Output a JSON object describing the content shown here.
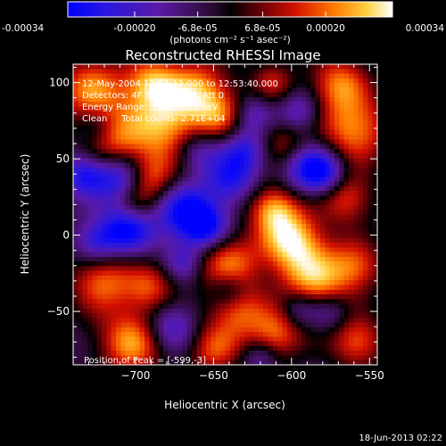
{
  "colorbar": {
    "ticks": [
      {
        "value": -0.00034,
        "label": "-0.00034"
      },
      {
        "value": -0.0002,
        "label": "-0.00020"
      },
      {
        "value": -6.8e-05,
        "label": "-6.8e-05"
      },
      {
        "value": 6.8e-05,
        "label": "6.8e-05"
      },
      {
        "value": 0.0002,
        "label": "0.00020"
      },
      {
        "value": 0.00034,
        "label": "0.00034"
      }
    ],
    "range": [
      -0.00034,
      0.00034
    ],
    "unit_label": "(photons cm⁻² s⁻¹ asec⁻²)",
    "stops": [
      {
        "pos": 0.0,
        "color": "#0000ff"
      },
      {
        "pos": 0.12,
        "color": "#2a18e0"
      },
      {
        "pos": 0.28,
        "color": "#5a1aa6"
      },
      {
        "pos": 0.45,
        "color": "#2a0a30"
      },
      {
        "pos": 0.5,
        "color": "#000000"
      },
      {
        "pos": 0.58,
        "color": "#5a0008"
      },
      {
        "pos": 0.7,
        "color": "#d31000"
      },
      {
        "pos": 0.82,
        "color": "#ff7a00"
      },
      {
        "pos": 0.92,
        "color": "#ffd040"
      },
      {
        "pos": 1.0,
        "color": "#ffffff"
      }
    ]
  },
  "chart_data": {
    "type": "heatmap",
    "title": "Reconstructed RHESSI Image",
    "xlabel": "Heliocentric X (arcsec)",
    "ylabel": "Heliocentric Y (arcsec)",
    "xlim": [
      -740,
      -545
    ],
    "ylim": [
      -85,
      112
    ],
    "xticks": [
      -700,
      -650,
      -600,
      -550
    ],
    "yticks": [
      -50,
      0,
      50,
      100
    ],
    "xtick_labels": [
      "−700",
      "−650",
      "−600",
      "−550"
    ],
    "ytick_labels": [
      "−50",
      "0",
      "50",
      "100"
    ],
    "annotations": [
      "12-May-2004 12:51:12.000 to 12:53:40.000",
      "Detectors: 4F 5F 6F 7F 8F, Att 0",
      "Energy Range: 25.0 - 50.0 keV",
      "Clean     Total counts: 2.71E+04"
    ],
    "peak_label": "Position of Peak = [-599,-3]",
    "peak": [
      -599,
      -3
    ],
    "blobs": [
      {
        "x": -728,
        "y": 95,
        "r": 16,
        "a": 0.9
      },
      {
        "x": -715,
        "y": 60,
        "r": 14,
        "a": 0.75
      },
      {
        "x": -690,
        "y": 100,
        "r": 12,
        "a": 0.85
      },
      {
        "x": -682,
        "y": 72,
        "r": 18,
        "a": 1.0
      },
      {
        "x": -690,
        "y": 38,
        "r": 11,
        "a": 0.7
      },
      {
        "x": -700,
        "y": 20,
        "r": 10,
        "a": 0.55
      },
      {
        "x": -722,
        "y": -30,
        "r": 14,
        "a": 0.85
      },
      {
        "x": -702,
        "y": -70,
        "r": 15,
        "a": 1.0
      },
      {
        "x": -690,
        "y": -35,
        "r": 12,
        "a": 0.7
      },
      {
        "x": -660,
        "y": 95,
        "r": 15,
        "a": 0.85
      },
      {
        "x": -645,
        "y": 78,
        "r": 12,
        "a": 0.6
      },
      {
        "x": -640,
        "y": -20,
        "r": 14,
        "a": 0.9
      },
      {
        "x": -635,
        "y": -50,
        "r": 13,
        "a": 0.75
      },
      {
        "x": -650,
        "y": -75,
        "r": 12,
        "a": 0.7
      },
      {
        "x": -612,
        "y": 100,
        "r": 10,
        "a": 0.55
      },
      {
        "x": -605,
        "y": 60,
        "r": 12,
        "a": 0.6
      },
      {
        "x": -612,
        "y": 18,
        "r": 11,
        "a": 0.9
      },
      {
        "x": -600,
        "y": -3,
        "r": 14,
        "a": 1.15
      },
      {
        "x": -585,
        "y": -30,
        "r": 16,
        "a": 1.0
      },
      {
        "x": -610,
        "y": -65,
        "r": 12,
        "a": 0.8
      },
      {
        "x": -570,
        "y": 100,
        "r": 13,
        "a": 0.8
      },
      {
        "x": -560,
        "y": 70,
        "r": 16,
        "a": 0.95
      },
      {
        "x": -565,
        "y": 25,
        "r": 12,
        "a": 0.75
      },
      {
        "x": -558,
        "y": -20,
        "r": 12,
        "a": 0.7
      },
      {
        "x": -558,
        "y": -70,
        "r": 12,
        "a": 0.8
      },
      {
        "x": -710,
        "y": 38,
        "r": 12,
        "a": -0.9
      },
      {
        "x": -733,
        "y": 40,
        "r": 10,
        "a": -0.8
      },
      {
        "x": -705,
        "y": 5,
        "r": 12,
        "a": -1.0
      },
      {
        "x": -725,
        "y": -5,
        "r": 10,
        "a": -0.7
      },
      {
        "x": -668,
        "y": 15,
        "r": 13,
        "a": -0.95
      },
      {
        "x": -655,
        "y": 5,
        "r": 10,
        "a": -0.8
      },
      {
        "x": -640,
        "y": 35,
        "r": 11,
        "a": -0.7
      },
      {
        "x": -660,
        "y": 55,
        "r": 10,
        "a": -0.6
      },
      {
        "x": -630,
        "y": 55,
        "r": 11,
        "a": -0.75
      },
      {
        "x": -625,
        "y": 80,
        "r": 9,
        "a": -0.5
      },
      {
        "x": -590,
        "y": 45,
        "r": 12,
        "a": -0.8
      },
      {
        "x": -578,
        "y": 40,
        "r": 10,
        "a": -0.7
      },
      {
        "x": -595,
        "y": 80,
        "r": 10,
        "a": -0.6
      },
      {
        "x": -640,
        "y": -35,
        "r": 9,
        "a": -0.6
      },
      {
        "x": -595,
        "y": -48,
        "r": 9,
        "a": -0.55
      },
      {
        "x": -678,
        "y": -60,
        "r": 12,
        "a": -0.7
      },
      {
        "x": -575,
        "y": -50,
        "r": 9,
        "a": -0.5
      },
      {
        "x": -725,
        "y": 70,
        "r": 9,
        "a": -0.4
      },
      {
        "x": -670,
        "y": -18,
        "r": 9,
        "a": -0.5
      },
      {
        "x": -620,
        "y": -80,
        "r": 8,
        "a": -0.4
      }
    ]
  },
  "footer": {
    "timestamp": "18-Jun-2013 02:22"
  }
}
